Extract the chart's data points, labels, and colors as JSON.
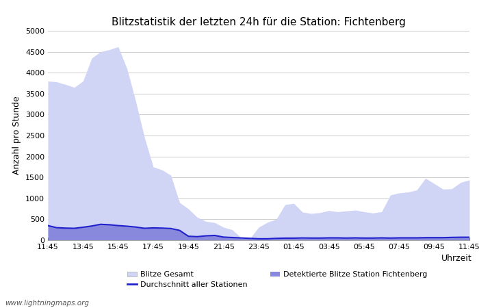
{
  "title": "Blitzstatistik der letzten 24h für die Station: Fichtenberg",
  "xlabel": "Uhrzeit",
  "ylabel": "Anzahl pro Stunde",
  "watermark": "www.lightningmaps.org",
  "x_labels": [
    "11:45",
    "13:45",
    "15:45",
    "17:45",
    "19:45",
    "21:45",
    "23:45",
    "01:45",
    "03:45",
    "05:45",
    "07:45",
    "09:45",
    "11:45"
  ],
  "ylim": [
    0,
    5000
  ],
  "yticks": [
    0,
    500,
    1000,
    1500,
    2000,
    2500,
    3000,
    3500,
    4000,
    4500,
    5000
  ],
  "color_gesamt": "#d0d4f5",
  "color_station": "#8888dd",
  "color_avg": "#2020cc",
  "legend_gesamt": "Blitze Gesamt",
  "legend_station": "Detektierte Blitze Station Fichtenberg",
  "legend_avg": "Durchschnitt aller Stationen",
  "blitze_gesamt": [
    3800,
    3780,
    3720,
    3650,
    3800,
    4350,
    4500,
    4550,
    4620,
    4100,
    3320,
    2450,
    1750,
    1680,
    1550,
    900,
    750,
    550,
    450,
    420,
    310,
    250,
    60,
    40,
    310,
    430,
    500,
    850,
    880,
    670,
    640,
    660,
    710,
    680,
    700,
    720,
    680,
    650,
    680,
    1080,
    1130,
    1150,
    1200,
    1480,
    1350,
    1220,
    1230,
    1380,
    1440
  ],
  "blitze_station": [
    360,
    300,
    290,
    280,
    310,
    340,
    380,
    370,
    350,
    330,
    310,
    280,
    290,
    280,
    270,
    230,
    90,
    80,
    100,
    110,
    70,
    60,
    50,
    40,
    30,
    30,
    40,
    50,
    50,
    50,
    50,
    50,
    55,
    55,
    50,
    55,
    50,
    50,
    55,
    50,
    55,
    55,
    55,
    60,
    60,
    60,
    65,
    70,
    70
  ],
  "avg_line": [
    350,
    300,
    290,
    285,
    310,
    340,
    380,
    370,
    350,
    335,
    315,
    285,
    295,
    290,
    280,
    235,
    95,
    85,
    105,
    115,
    75,
    65,
    55,
    45,
    35,
    35,
    45,
    50,
    50,
    55,
    52,
    52,
    57,
    57,
    52,
    57,
    52,
    52,
    57,
    52,
    57,
    57,
    57,
    62,
    62,
    62,
    68,
    72,
    72
  ]
}
